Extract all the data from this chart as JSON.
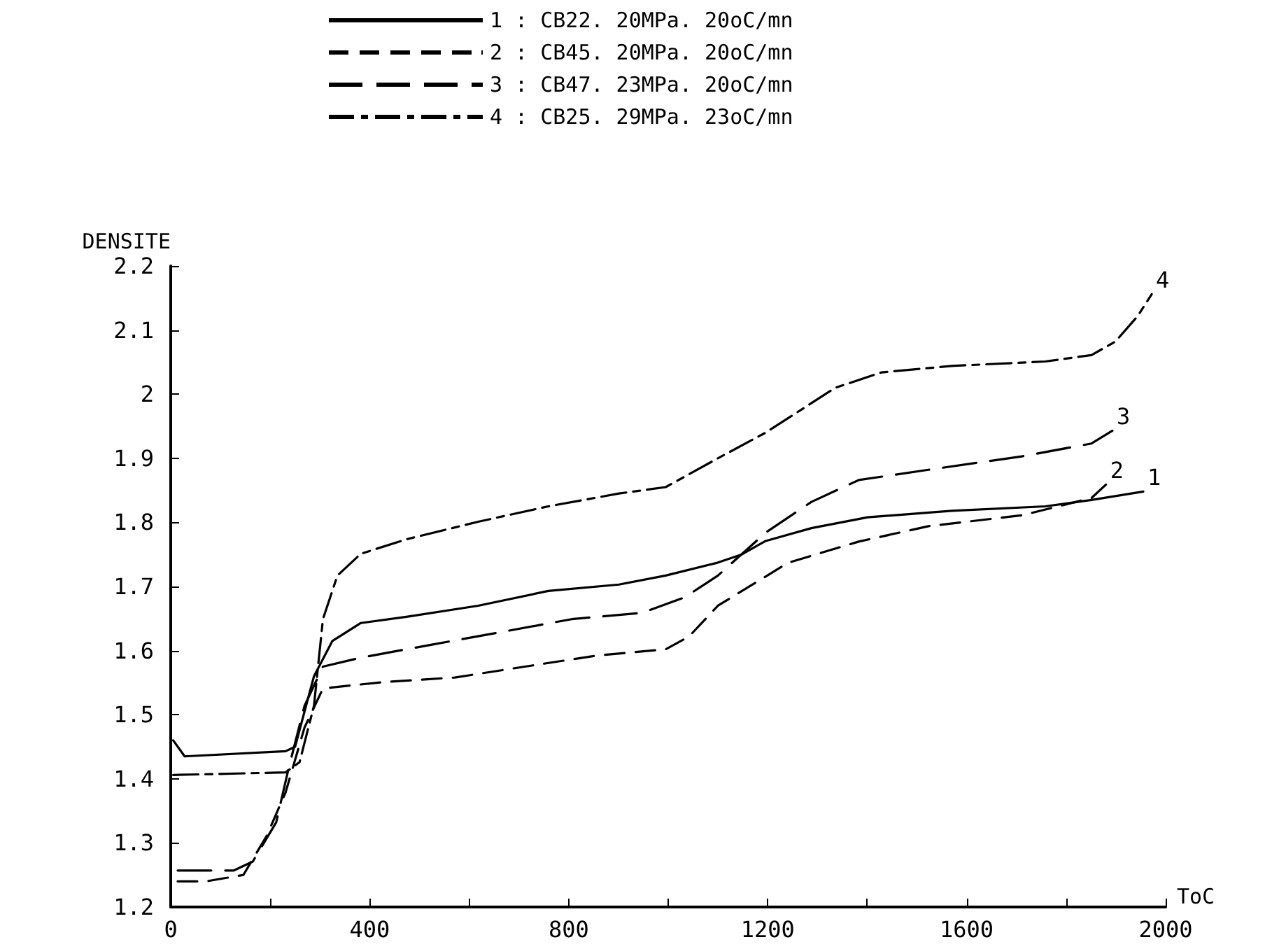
{
  "chart_data": {
    "type": "line",
    "xlabel": "ToC",
    "ylabel": "DENSITE",
    "xlim": [
      0,
      2000
    ],
    "ylim": [
      1.2,
      2.2
    ],
    "xticks": [
      0,
      {
        "value": 200,
        "label": null
      },
      400,
      {
        "value": 600,
        "label": null
      },
      800,
      {
        "value": 1000,
        "label": null
      },
      1200,
      {
        "value": 1400,
        "label": null
      },
      1600,
      {
        "value": 1800,
        "label": null
      },
      2000
    ],
    "yticks": [
      1.2,
      1.3,
      1.4,
      1.5,
      1.6,
      1.7,
      1.8,
      1.9,
      2.0,
      2.1,
      2.2
    ],
    "grid": false,
    "legend": "top",
    "marker": "none",
    "annotations": [
      {
        "text": "1",
        "x": 1955,
        "y": 1.848
      },
      {
        "text": "2",
        "x": 1880,
        "y": 1.859
      },
      {
        "text": "3",
        "x": 1893,
        "y": 1.943
      },
      {
        "text": "4",
        "x": 1972,
        "y": 2.156
      }
    ],
    "series": [
      {
        "name": "1 : CB22. 20MPa. 20oC/mn",
        "color": "#000000",
        "line_style": "solid",
        "x": [
          5,
          28,
          231,
          250,
          288,
          325,
          382,
          476,
          618,
          759,
          901,
          995,
          1099,
          1148,
          1196,
          1288,
          1401,
          1570,
          1758,
          1851,
          1955
        ],
        "values": [
          1.46,
          1.435,
          1.443,
          1.45,
          1.56,
          1.615,
          1.643,
          1.653,
          1.67,
          1.693,
          1.703,
          1.717,
          1.737,
          1.75,
          1.771,
          1.791,
          1.808,
          1.818,
          1.825,
          1.835,
          1.848
        ]
      },
      {
        "name": "2 : CB45. 20MPa. 20oC/mn",
        "color": "#000000",
        "line_style": "dashed",
        "x": [
          14,
          71,
          146,
          193,
          231,
          269,
          306,
          429,
          571,
          712,
          854,
          995,
          1042,
          1100,
          1241,
          1383,
          1523,
          1711,
          1851,
          1880
        ],
        "values": [
          1.24,
          1.24,
          1.25,
          1.311,
          1.379,
          1.48,
          1.541,
          1.551,
          1.558,
          1.575,
          1.592,
          1.602,
          1.622,
          1.67,
          1.737,
          1.77,
          1.794,
          1.811,
          1.838,
          1.859
        ]
      },
      {
        "name": "3 : CB47. 23MPa. 20oC/mn",
        "color": "#000000",
        "line_style": "dashed",
        "x": [
          14,
          127,
          165,
          212,
          236,
          269,
          306,
          382,
          523,
          665,
          806,
          948,
          1033,
          1100,
          1196,
          1288,
          1383,
          1523,
          1711,
          1851,
          1893
        ],
        "values": [
          1.257,
          1.257,
          1.271,
          1.332,
          1.413,
          1.514,
          1.575,
          1.589,
          1.609,
          1.629,
          1.649,
          1.659,
          1.683,
          1.717,
          1.784,
          1.832,
          1.866,
          1.882,
          1.903,
          1.923,
          1.943
        ]
      },
      {
        "name": "4 : CB25. 29MPa. 23oC/mn",
        "color": "#000000",
        "line_style": "dashed",
        "x": [
          5,
          231,
          259,
          288,
          306,
          335,
          382,
          476,
          618,
          759,
          901,
          995,
          1100,
          1196,
          1336,
          1429,
          1570,
          1758,
          1851,
          1899,
          1944,
          1972
        ],
        "values": [
          1.406,
          1.41,
          1.426,
          1.514,
          1.649,
          1.717,
          1.751,
          1.774,
          1.801,
          1.825,
          1.845,
          1.855,
          1.9,
          1.94,
          2.01,
          2.034,
          2.044,
          2.051,
          2.061,
          2.082,
          2.122,
          2.156
        ]
      }
    ]
  }
}
